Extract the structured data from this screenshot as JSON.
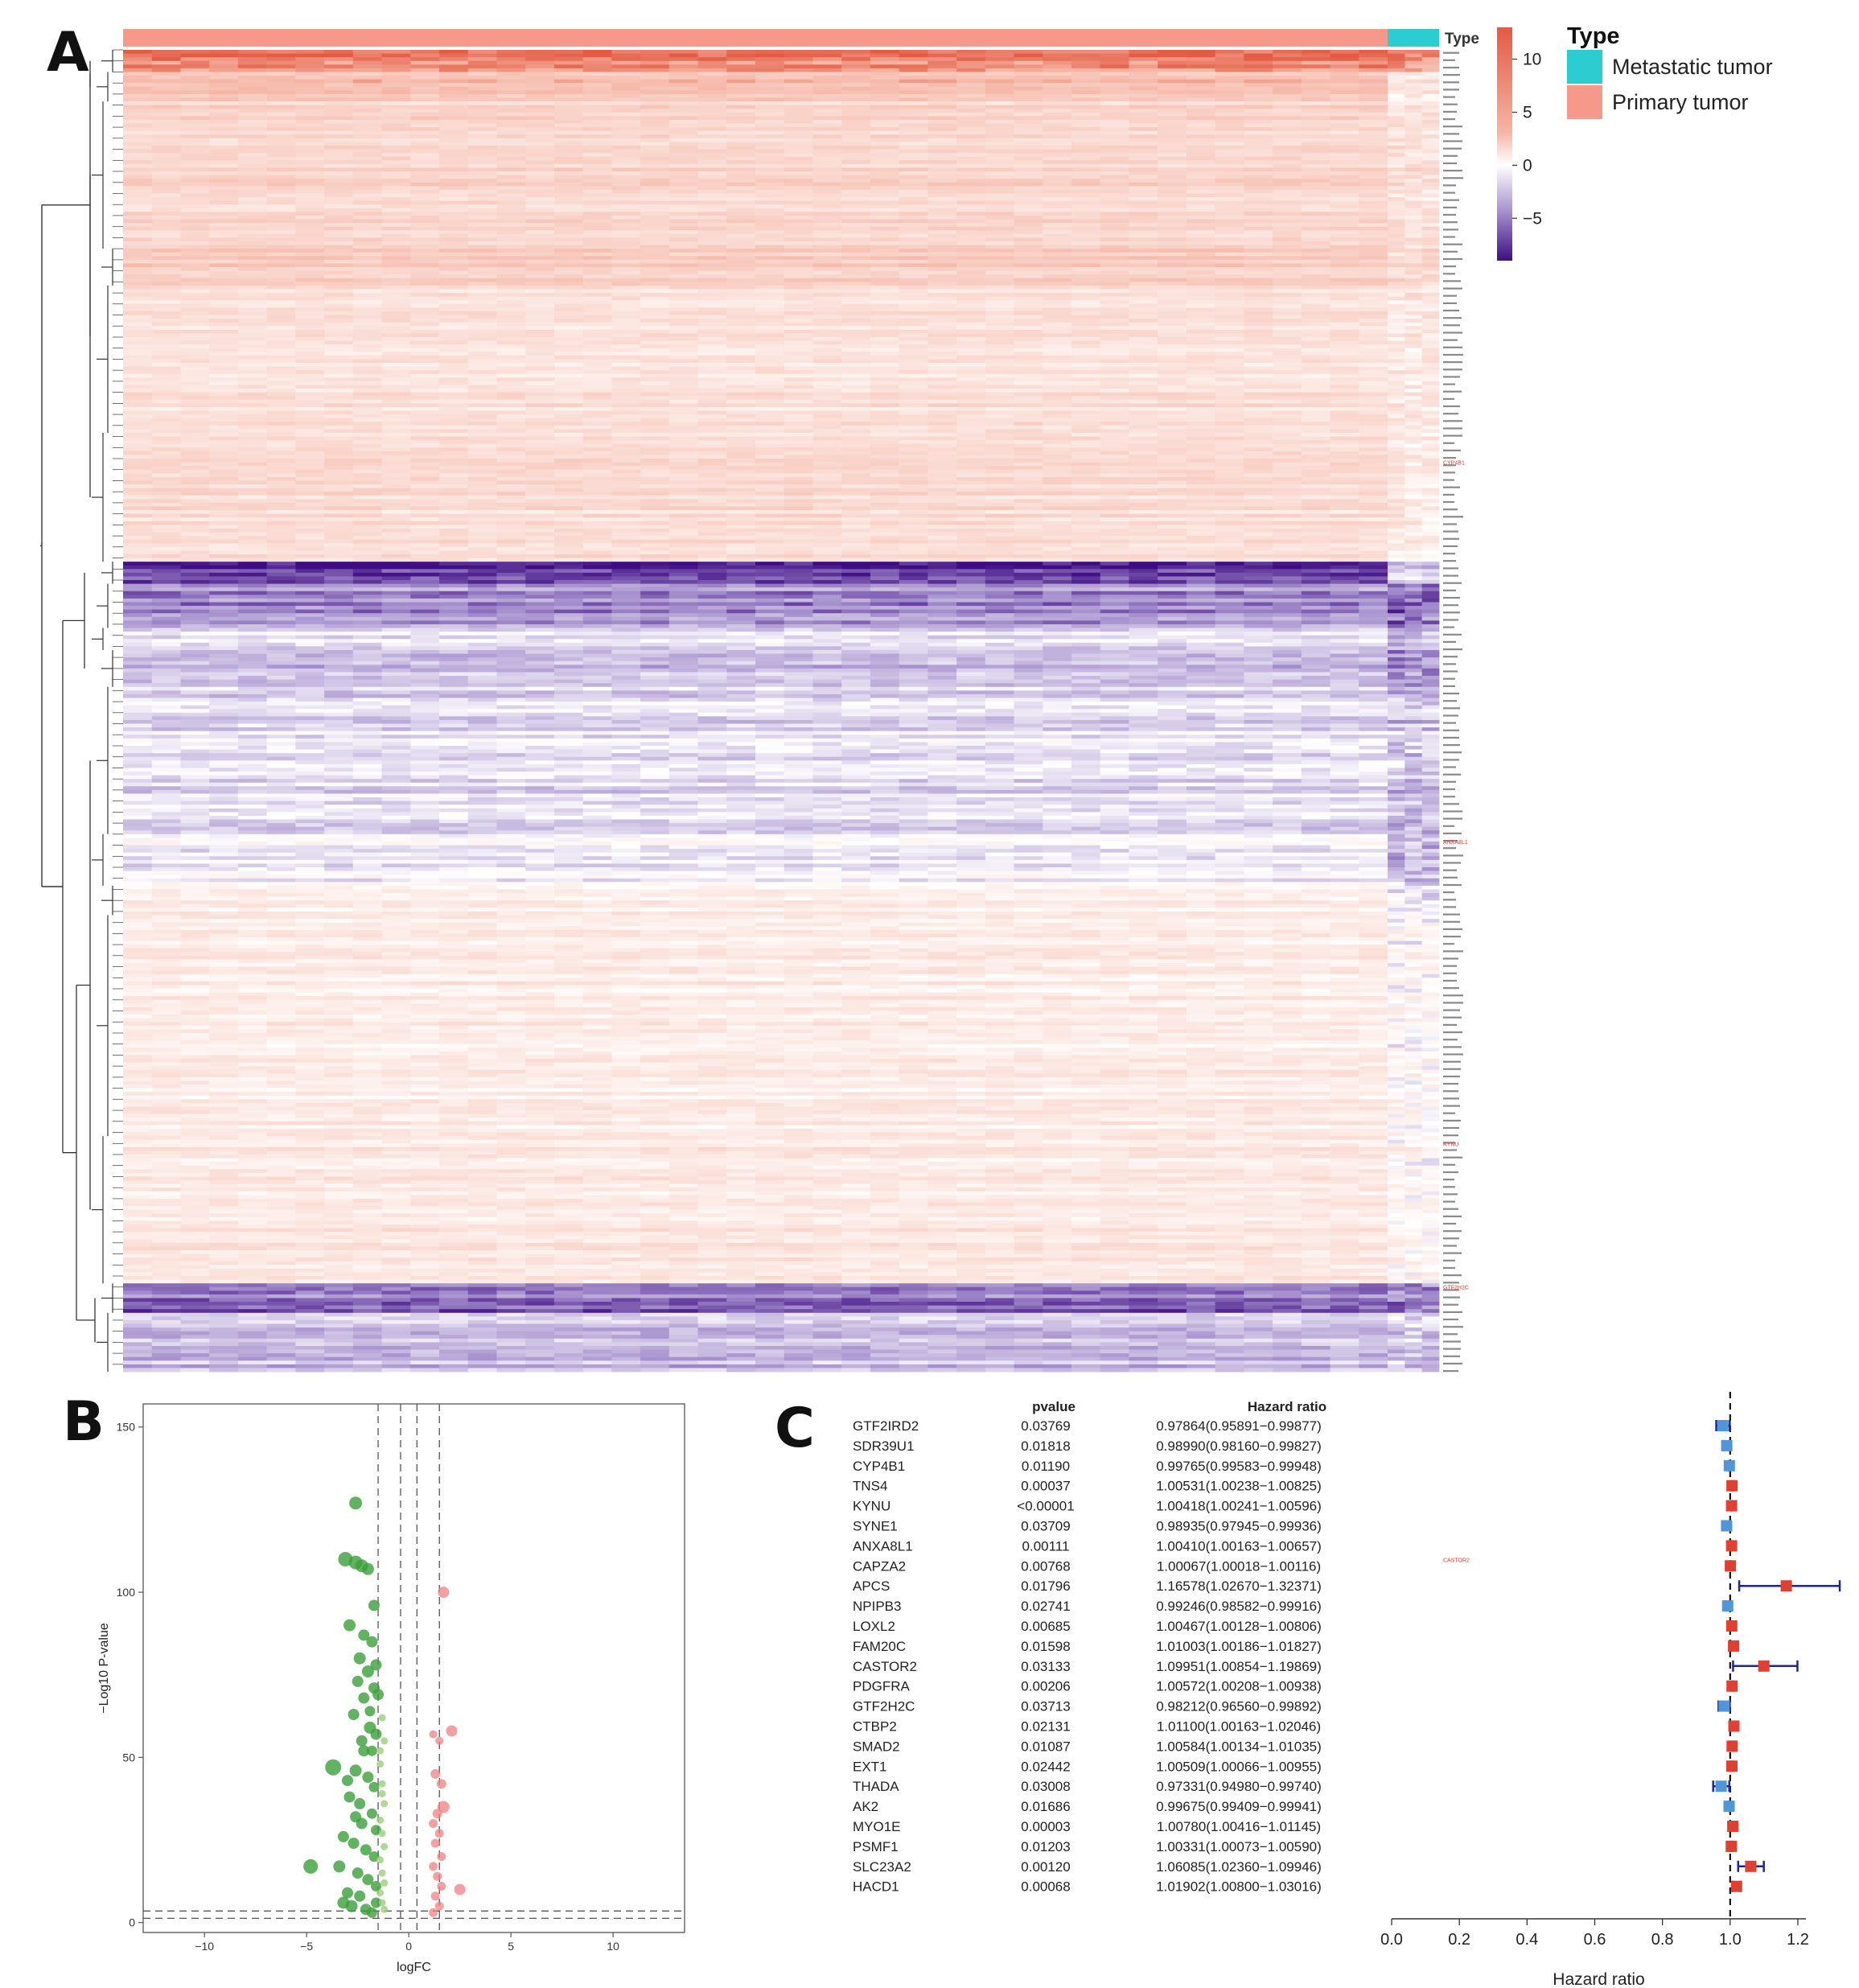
{
  "panels": {
    "a": "A",
    "b": "B",
    "c": "C"
  },
  "colors": {
    "metastatic": "#2ccdd0",
    "primary": "#f6988a",
    "high": "#e45a42",
    "mid": "#ffffff",
    "low": "#3f0d83",
    "volcano_down": "#3aa03a",
    "volcano_down_light": "#98d07a",
    "volcano_up": "#f08080",
    "hr_low": "#4f97d8",
    "hr_high": "#e0402f",
    "ci_line": "#1c2599"
  },
  "chart_data": [
    {
      "type": "heatmap",
      "panel": "A",
      "annotation_label": "Type",
      "legend_title": "Type",
      "legend_entries": [
        {
          "label": "Metastatic tumor",
          "color": "#2ccdd0"
        },
        {
          "label": "Primary tumor",
          "color": "#f6988a"
        }
      ],
      "colorbar_ticks": [
        10,
        5,
        0,
        -5
      ],
      "colorbar_range": [
        -9,
        13
      ],
      "row_clusters": [
        {
          "rows": 6,
          "primary_level": 12,
          "metastatic_level": 11
        },
        {
          "rows": 8,
          "primary_level": 8,
          "metastatic_level": 3
        },
        {
          "rows": 40,
          "primary_level": 5.5,
          "metastatic_level": 4
        },
        {
          "rows": 10,
          "primary_level": 6.5,
          "metastatic_level": 5
        },
        {
          "rows": 40,
          "primary_level": 4,
          "metastatic_level": 3
        },
        {
          "rows": 35,
          "primary_level": 4.5,
          "metastatic_level": 2.5
        },
        {
          "rows": 6,
          "primary_level": -8,
          "metastatic_level": -2
        },
        {
          "rows": 12,
          "primary_level": -5,
          "metastatic_level": -6
        },
        {
          "rows": 6,
          "primary_level": -1,
          "metastatic_level": -3
        },
        {
          "rows": 10,
          "primary_level": -3,
          "metastatic_level": -5
        },
        {
          "rows": 40,
          "primary_level": -1.5,
          "metastatic_level": -2.5
        },
        {
          "rows": 14,
          "primary_level": -0.5,
          "metastatic_level": -3
        },
        {
          "rows": 8,
          "primary_level": 2.5,
          "metastatic_level": -1
        },
        {
          "rows": 60,
          "primary_level": 2.5,
          "metastatic_level": 0.5
        },
        {
          "rows": 40,
          "primary_level": 3,
          "metastatic_level": 1
        },
        {
          "rows": 8,
          "primary_level": -6,
          "metastatic_level": -5
        },
        {
          "rows": 16,
          "primary_level": -3,
          "metastatic_level": -2
        }
      ],
      "highlighted_genes": [
        "CYP4B1",
        "ANXA8L1",
        "KYNU",
        "GTF2H2C",
        "CASTOR2"
      ]
    },
    {
      "type": "scatter",
      "panel": "B",
      "xlabel": "logFC",
      "ylabel": "−Log10 P-value",
      "xlim": [
        -13,
        13.5
      ],
      "ylim": [
        -3,
        157
      ],
      "xticks": [
        -10,
        -5,
        0,
        5,
        10
      ],
      "yticks": [
        0,
        50,
        100,
        150
      ],
      "vlines": [
        -1.5,
        -0.4,
        0.4,
        1.5
      ],
      "hlines": [
        1.3,
        3.5
      ],
      "series": [
        {
          "name": "down",
          "points": [
            [
              -2.6,
              127,
              14
            ],
            [
              -3.1,
              110,
              16
            ],
            [
              -2.6,
              109,
              15
            ],
            [
              -2.3,
              108,
              14
            ],
            [
              -2.0,
              107,
              13
            ],
            [
              -1.7,
              96,
              12
            ],
            [
              -2.9,
              90,
              13
            ],
            [
              -2.2,
              87,
              12
            ],
            [
              -1.8,
              85,
              12
            ],
            [
              -2.4,
              80,
              13
            ],
            [
              -1.6,
              78,
              12
            ],
            [
              -2.0,
              76,
              13
            ],
            [
              -1.7,
              71,
              12
            ],
            [
              -1.5,
              69,
              12
            ],
            [
              -2.2,
              68,
              12
            ],
            [
              -2.7,
              63,
              12
            ],
            [
              -1.9,
              59,
              13
            ],
            [
              -1.6,
              57,
              12
            ],
            [
              -2.3,
              55,
              12
            ],
            [
              -1.8,
              52,
              11
            ],
            [
              -3.7,
              47,
              18
            ],
            [
              -2.6,
              46,
              13
            ],
            [
              -2.0,
              44,
              12
            ],
            [
              -1.7,
              41,
              11
            ],
            [
              -2.9,
              38,
              12
            ],
            [
              -2.4,
              36,
              12
            ],
            [
              -1.8,
              33,
              11
            ],
            [
              -2.3,
              30,
              12
            ],
            [
              -1.6,
              28,
              11
            ],
            [
              -3.2,
              26,
              12
            ],
            [
              -2.7,
              24,
              12
            ],
            [
              -2.1,
              22,
              12
            ],
            [
              -1.7,
              20,
              11
            ],
            [
              -4.8,
              17,
              16
            ],
            [
              -3.4,
              17,
              13
            ],
            [
              -2.5,
              15,
              12
            ],
            [
              -2.0,
              13,
              12
            ],
            [
              -1.6,
              11,
              11
            ],
            [
              -3.0,
              9,
              12
            ],
            [
              -2.4,
              8,
              12
            ],
            [
              -3.2,
              6,
              13
            ],
            [
              -2.8,
              5,
              13
            ],
            [
              -2.1,
              4,
              12
            ],
            [
              -1.8,
              3,
              11
            ],
            [
              -1.6,
              6,
              11
            ],
            [
              -2.2,
              52,
              12
            ],
            [
              -2.6,
              32,
              12
            ],
            [
              -3.0,
              43,
              12
            ],
            [
              -1.9,
              64,
              11
            ],
            [
              -2.5,
              73,
              12
            ]
          ]
        },
        {
          "name": "down-minor",
          "points": [
            [
              -1.3,
              62,
              7
            ],
            [
              -1.2,
              55,
              7
            ],
            [
              -1.4,
              48,
              7
            ],
            [
              -1.3,
              42,
              7
            ],
            [
              -1.2,
              36,
              7
            ],
            [
              -1.4,
              31,
              7
            ],
            [
              -1.3,
              27,
              7
            ],
            [
              -1.2,
              23,
              7
            ],
            [
              -1.4,
              19,
              7
            ],
            [
              -1.3,
              15,
              7
            ],
            [
              -1.2,
              12,
              7
            ],
            [
              -1.4,
              9,
              7
            ],
            [
              -1.3,
              6,
              7
            ],
            [
              -1.2,
              4,
              7
            ],
            [
              -1.4,
              52,
              7
            ],
            [
              -1.3,
              39,
              7
            ]
          ]
        },
        {
          "name": "up",
          "points": [
            [
              1.7,
              100,
              12
            ],
            [
              2.1,
              58,
              12
            ],
            [
              1.2,
              57,
              8
            ],
            [
              1.5,
              55,
              8
            ],
            [
              1.3,
              45,
              10
            ],
            [
              1.6,
              42,
              10
            ],
            [
              1.7,
              35,
              13
            ],
            [
              1.4,
              33,
              10
            ],
            [
              1.2,
              30,
              9
            ],
            [
              1.5,
              27,
              9
            ],
            [
              1.3,
              24,
              9
            ],
            [
              1.6,
              20,
              9
            ],
            [
              1.2,
              17,
              9
            ],
            [
              1.4,
              14,
              9
            ],
            [
              1.6,
              11,
              9
            ],
            [
              2.5,
              10,
              12
            ],
            [
              1.3,
              8,
              9
            ],
            [
              1.5,
              5,
              9
            ],
            [
              1.2,
              3,
              9
            ]
          ]
        }
      ]
    },
    {
      "type": "forest",
      "panel": "C",
      "headers": [
        "pvalue",
        "Hazard ratio"
      ],
      "xlabel": "Hazard ratio",
      "xlim": [
        0.0,
        1.25
      ],
      "xticks": [
        "0.0",
        "0.2",
        "0.4",
        "0.6",
        "0.8",
        "1.0",
        "1.2"
      ],
      "rows": [
        {
          "gene": "GTF2IRD2",
          "pvalue": "0.03769",
          "hr_text": "0.97864(0.95891−0.99877)",
          "hr": 0.97864,
          "lo": 0.95891,
          "hi": 0.99877
        },
        {
          "gene": "SDR39U1",
          "pvalue": "0.01818",
          "hr_text": "0.98990(0.98160−0.99827)",
          "hr": 0.9899,
          "lo": 0.9816,
          "hi": 0.99827
        },
        {
          "gene": "CYP4B1",
          "pvalue": "0.01190",
          "hr_text": "0.99765(0.99583−0.99948)",
          "hr": 0.99765,
          "lo": 0.99583,
          "hi": 0.99948
        },
        {
          "gene": "TNS4",
          "pvalue": "0.00037",
          "hr_text": "1.00531(1.00238−1.00825)",
          "hr": 1.00531,
          "lo": 1.00238,
          "hi": 1.00825
        },
        {
          "gene": "KYNU",
          "pvalue": "<0.00001",
          "hr_text": "1.00418(1.00241−1.00596)",
          "hr": 1.00418,
          "lo": 1.00241,
          "hi": 1.00596
        },
        {
          "gene": "SYNE1",
          "pvalue": "0.03709",
          "hr_text": "0.98935(0.97945−0.99936)",
          "hr": 0.98935,
          "lo": 0.97945,
          "hi": 0.99936
        },
        {
          "gene": "ANXA8L1",
          "pvalue": "0.00111",
          "hr_text": "1.00410(1.00163−1.00657)",
          "hr": 1.0041,
          "lo": 1.00163,
          "hi": 1.00657
        },
        {
          "gene": "CAPZA2",
          "pvalue": "0.00768",
          "hr_text": "1.00067(1.00018−1.00116)",
          "hr": 1.00067,
          "lo": 1.00018,
          "hi": 1.00116
        },
        {
          "gene": "APCS",
          "pvalue": "0.01796",
          "hr_text": "1.16578(1.02670−1.32371)",
          "hr": 1.16578,
          "lo": 1.0267,
          "hi": 1.32371
        },
        {
          "gene": "NPIPB3",
          "pvalue": "0.02741",
          "hr_text": "0.99246(0.98582−0.99916)",
          "hr": 0.99246,
          "lo": 0.98582,
          "hi": 0.99916
        },
        {
          "gene": "LOXL2",
          "pvalue": "0.00685",
          "hr_text": "1.00467(1.00128−1.00806)",
          "hr": 1.00467,
          "lo": 1.00128,
          "hi": 1.00806
        },
        {
          "gene": "FAM20C",
          "pvalue": "0.01598",
          "hr_text": "1.01003(1.00186−1.01827)",
          "hr": 1.01003,
          "lo": 1.00186,
          "hi": 1.01827
        },
        {
          "gene": "CASTOR2",
          "pvalue": "0.03133",
          "hr_text": "1.09951(1.00854−1.19869)",
          "hr": 1.09951,
          "lo": 1.00854,
          "hi": 1.19869
        },
        {
          "gene": "PDGFRA",
          "pvalue": "0.00206",
          "hr_text": "1.00572(1.00208−1.00938)",
          "hr": 1.00572,
          "lo": 1.00208,
          "hi": 1.00938
        },
        {
          "gene": "GTF2H2C",
          "pvalue": "0.03713",
          "hr_text": "0.98212(0.96560−0.99892)",
          "hr": 0.98212,
          "lo": 0.9656,
          "hi": 0.99892
        },
        {
          "gene": "CTBP2",
          "pvalue": "0.02131",
          "hr_text": "1.01100(1.00163−1.02046)",
          "hr": 1.011,
          "lo": 1.00163,
          "hi": 1.02046
        },
        {
          "gene": "SMAD2",
          "pvalue": "0.01087",
          "hr_text": "1.00584(1.00134−1.01035)",
          "hr": 1.00584,
          "lo": 1.00134,
          "hi": 1.01035
        },
        {
          "gene": "EXT1",
          "pvalue": "0.02442",
          "hr_text": "1.00509(1.00066−1.00955)",
          "hr": 1.00509,
          "lo": 1.00066,
          "hi": 1.00955
        },
        {
          "gene": "THADA",
          "pvalue": "0.03008",
          "hr_text": "0.97331(0.94980−0.99740)",
          "hr": 0.97331,
          "lo": 0.9498,
          "hi": 0.9974
        },
        {
          "gene": "AK2",
          "pvalue": "0.01686",
          "hr_text": "0.99675(0.99409−0.99941)",
          "hr": 0.99675,
          "lo": 0.99409,
          "hi": 0.99941
        },
        {
          "gene": "MYO1E",
          "pvalue": "0.00003",
          "hr_text": "1.00780(1.00416−1.01145)",
          "hr": 1.0078,
          "lo": 1.00416,
          "hi": 1.01145
        },
        {
          "gene": "PSMF1",
          "pvalue": "0.01203",
          "hr_text": "1.00331(1.00073−1.00590)",
          "hr": 1.00331,
          "lo": 1.00073,
          "hi": 1.0059
        },
        {
          "gene": "SLC23A2",
          "pvalue": "0.00120",
          "hr_text": "1.06085(1.02360−1.09946)",
          "hr": 1.06085,
          "lo": 1.0236,
          "hi": 1.09946
        },
        {
          "gene": "HACD1",
          "pvalue": "0.00068",
          "hr_text": "1.01902(1.00800−1.03016)",
          "hr": 1.01902,
          "lo": 1.008,
          "hi": 1.03016
        }
      ]
    }
  ]
}
